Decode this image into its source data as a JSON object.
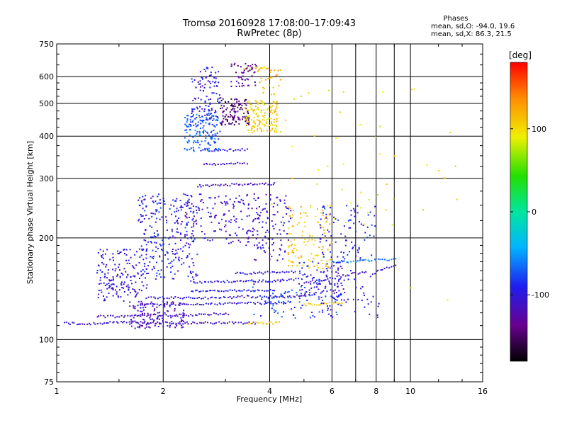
{
  "chart_data": {
    "type": "scatter",
    "title": "Tromsø 20160928 17:08:00–17:09:43",
    "subtitle": "RwPretec (8p)",
    "xlabel": "Frequency [MHz]",
    "ylabel": "Stationary phase Virtual Height [km]",
    "x_scale": "log",
    "y_scale": "log",
    "xlim": [
      1,
      16
    ],
    "ylim": [
      75,
      750
    ],
    "x_ticks": [
      "1",
      "2",
      "4",
      "6",
      "8",
      "10",
      "16"
    ],
    "y_ticks": [
      "75",
      "100",
      "200",
      "300",
      "400",
      "500",
      "600",
      "750"
    ],
    "grid": true,
    "stats": {
      "title": "Phases",
      "line_o": "mean, sd,O: -94.0, 19.6",
      "line_x": "mean, sd,X:  86.3, 21.5"
    },
    "colorbar": {
      "label": "[deg]",
      "range": [
        -180,
        180
      ],
      "ticks": [
        "100",
        "0",
        "-100"
      ],
      "colormap": "jet"
    },
    "traces": [
      {
        "x": [
          1.05,
          1.2,
          1.4,
          1.6,
          1.8,
          2.0,
          2.3,
          2.6,
          3.0,
          3.4,
          3.7
        ],
        "y": [
          112,
          111,
          112,
          113,
          112,
          112,
          112,
          112,
          112,
          112,
          112
        ],
        "phase": -110
      },
      {
        "x": [
          3.5,
          3.7,
          3.9,
          4.1,
          4.3
        ],
        "y": [
          112,
          112,
          112,
          112,
          112
        ],
        "phase": 110
      },
      {
        "x": [
          1.3,
          1.5,
          1.7,
          1.9,
          2.1,
          2.3,
          2.5,
          2.7,
          2.9,
          3.1
        ],
        "y": [
          117,
          117,
          118,
          118,
          118,
          118,
          118,
          119,
          119,
          119
        ],
        "phase": -110
      },
      {
        "x": [
          1.7,
          2.0,
          2.3,
          2.6,
          3.0,
          3.4,
          3.8,
          4.2,
          4.5
        ],
        "y": [
          127,
          127,
          127,
          127,
          128,
          128,
          128,
          128,
          128
        ],
        "phase": -100
      },
      {
        "x": [
          1.8,
          2.2,
          2.6,
          3.0,
          3.4,
          3.8,
          4.2,
          4.6,
          5.0,
          5.3
        ],
        "y": [
          133,
          133,
          133,
          133,
          134,
          134,
          134,
          134,
          135,
          135
        ],
        "phase": -100
      },
      {
        "x": [
          5.0,
          5.5,
          6.0,
          6.5
        ],
        "y": [
          127,
          127,
          128,
          128
        ],
        "phase": 110
      },
      {
        "x": [
          2.4,
          2.7,
          3.0,
          3.4,
          3.8,
          4.2
        ],
        "y": [
          139,
          139,
          139,
          140,
          140,
          140
        ],
        "phase": -95
      },
      {
        "x": [
          2.4,
          2.8,
          3.2,
          3.6,
          4.0,
          4.4,
          4.8
        ],
        "y": [
          148,
          148,
          149,
          149,
          149,
          150,
          151
        ],
        "phase": -100
      },
      {
        "x": [
          3.2,
          3.6,
          4.0,
          4.4,
          4.8
        ],
        "y": [
          157,
          157,
          158,
          158,
          159
        ],
        "phase": -100
      },
      {
        "x": [
          5.0,
          5.6,
          6.2,
          7.0,
          7.6
        ],
        "y": [
          148,
          150,
          153,
          157,
          160
        ],
        "phase": -110
      },
      {
        "x": [
          6.0,
          6.6,
          7.2,
          8.0,
          8.6,
          9.2
        ],
        "y": [
          170,
          170,
          171,
          172,
          172,
          173
        ],
        "phase": -60
      },
      {
        "x": [
          8.0,
          8.6,
          9.2
        ],
        "y": [
          160,
          163,
          166
        ],
        "phase": -110
      },
      {
        "x": [
          2.5,
          2.7,
          3.0,
          3.4,
          3.8,
          4.2
        ],
        "y": [
          285,
          286,
          287,
          288,
          288,
          289
        ],
        "phase": -110
      },
      {
        "x": [
          2.6,
          2.9,
          3.2,
          3.5
        ],
        "y": [
          330,
          331,
          332,
          333
        ],
        "phase": -110
      },
      {
        "x": [
          2.6,
          2.9,
          3.2,
          3.5
        ],
        "y": [
          362,
          363,
          364,
          365
        ],
        "phase": -100
      },
      {
        "x": [
          3.4,
          3.6,
          3.8,
          4.0
        ],
        "y": [
          635,
          636,
          637,
          638
        ],
        "phase": 115
      }
    ],
    "clusters": [
      {
        "x": [
          1.3,
          1.8
        ],
        "y": [
          130,
          185
        ],
        "n": 170,
        "phase": -105
      },
      {
        "x": [
          1.7,
          2.5
        ],
        "y": [
          150,
          270
        ],
        "n": 260,
        "phase": -95
      },
      {
        "x": [
          1.6,
          2.3
        ],
        "y": [
          108,
          130
        ],
        "n": 120,
        "phase": -115
      },
      {
        "x": [
          2.3,
          2.9
        ],
        "y": [
          360,
          470
        ],
        "n": 160,
        "phase": -70
      },
      {
        "x": [
          2.4,
          2.9
        ],
        "y": [
          450,
          640
        ],
        "n": 100,
        "phase": -100
      },
      {
        "x": [
          2.9,
          3.5
        ],
        "y": [
          430,
          520
        ],
        "n": 120,
        "phase": -145
      },
      {
        "x": [
          3.4,
          4.2
        ],
        "y": [
          410,
          510
        ],
        "n": 140,
        "phase": 105
      },
      {
        "x": [
          3.1,
          3.7
        ],
        "y": [
          560,
          660
        ],
        "n": 50,
        "phase": -135
      },
      {
        "x": [
          3.7,
          4.3
        ],
        "y": [
          530,
          640
        ],
        "n": 30,
        "phase": 120
      },
      {
        "x": [
          2.3,
          3.6
        ],
        "y": [
          190,
          270
        ],
        "n": 150,
        "phase": -110
      },
      {
        "x": [
          3.6,
          4.6
        ],
        "y": [
          170,
          270
        ],
        "n": 110,
        "phase": -110
      },
      {
        "x": [
          4.5,
          6.0
        ],
        "y": [
          160,
          250
        ],
        "n": 110,
        "phase": 110
      },
      {
        "x": [
          4.8,
          6.5
        ],
        "y": [
          130,
          170
        ],
        "n": 100,
        "phase": -100
      },
      {
        "x": [
          5.5,
          8.0
        ],
        "y": [
          170,
          250
        ],
        "n": 90,
        "phase": -95
      },
      {
        "x": [
          3.5,
          6.5
        ],
        "y": [
          115,
          150
        ],
        "n": 90,
        "phase": -80
      },
      {
        "x": [
          4.0,
          9.0
        ],
        "y": [
          210,
          560
        ],
        "n": 40,
        "phase": 95
      },
      {
        "x": [
          5.5,
          8.5
        ],
        "y": [
          115,
          160
        ],
        "n": 40,
        "phase": -105
      },
      {
        "x": [
          9.0,
          15.0
        ],
        "y": [
          130,
          560
        ],
        "n": 12,
        "phase": 90
      }
    ]
  }
}
